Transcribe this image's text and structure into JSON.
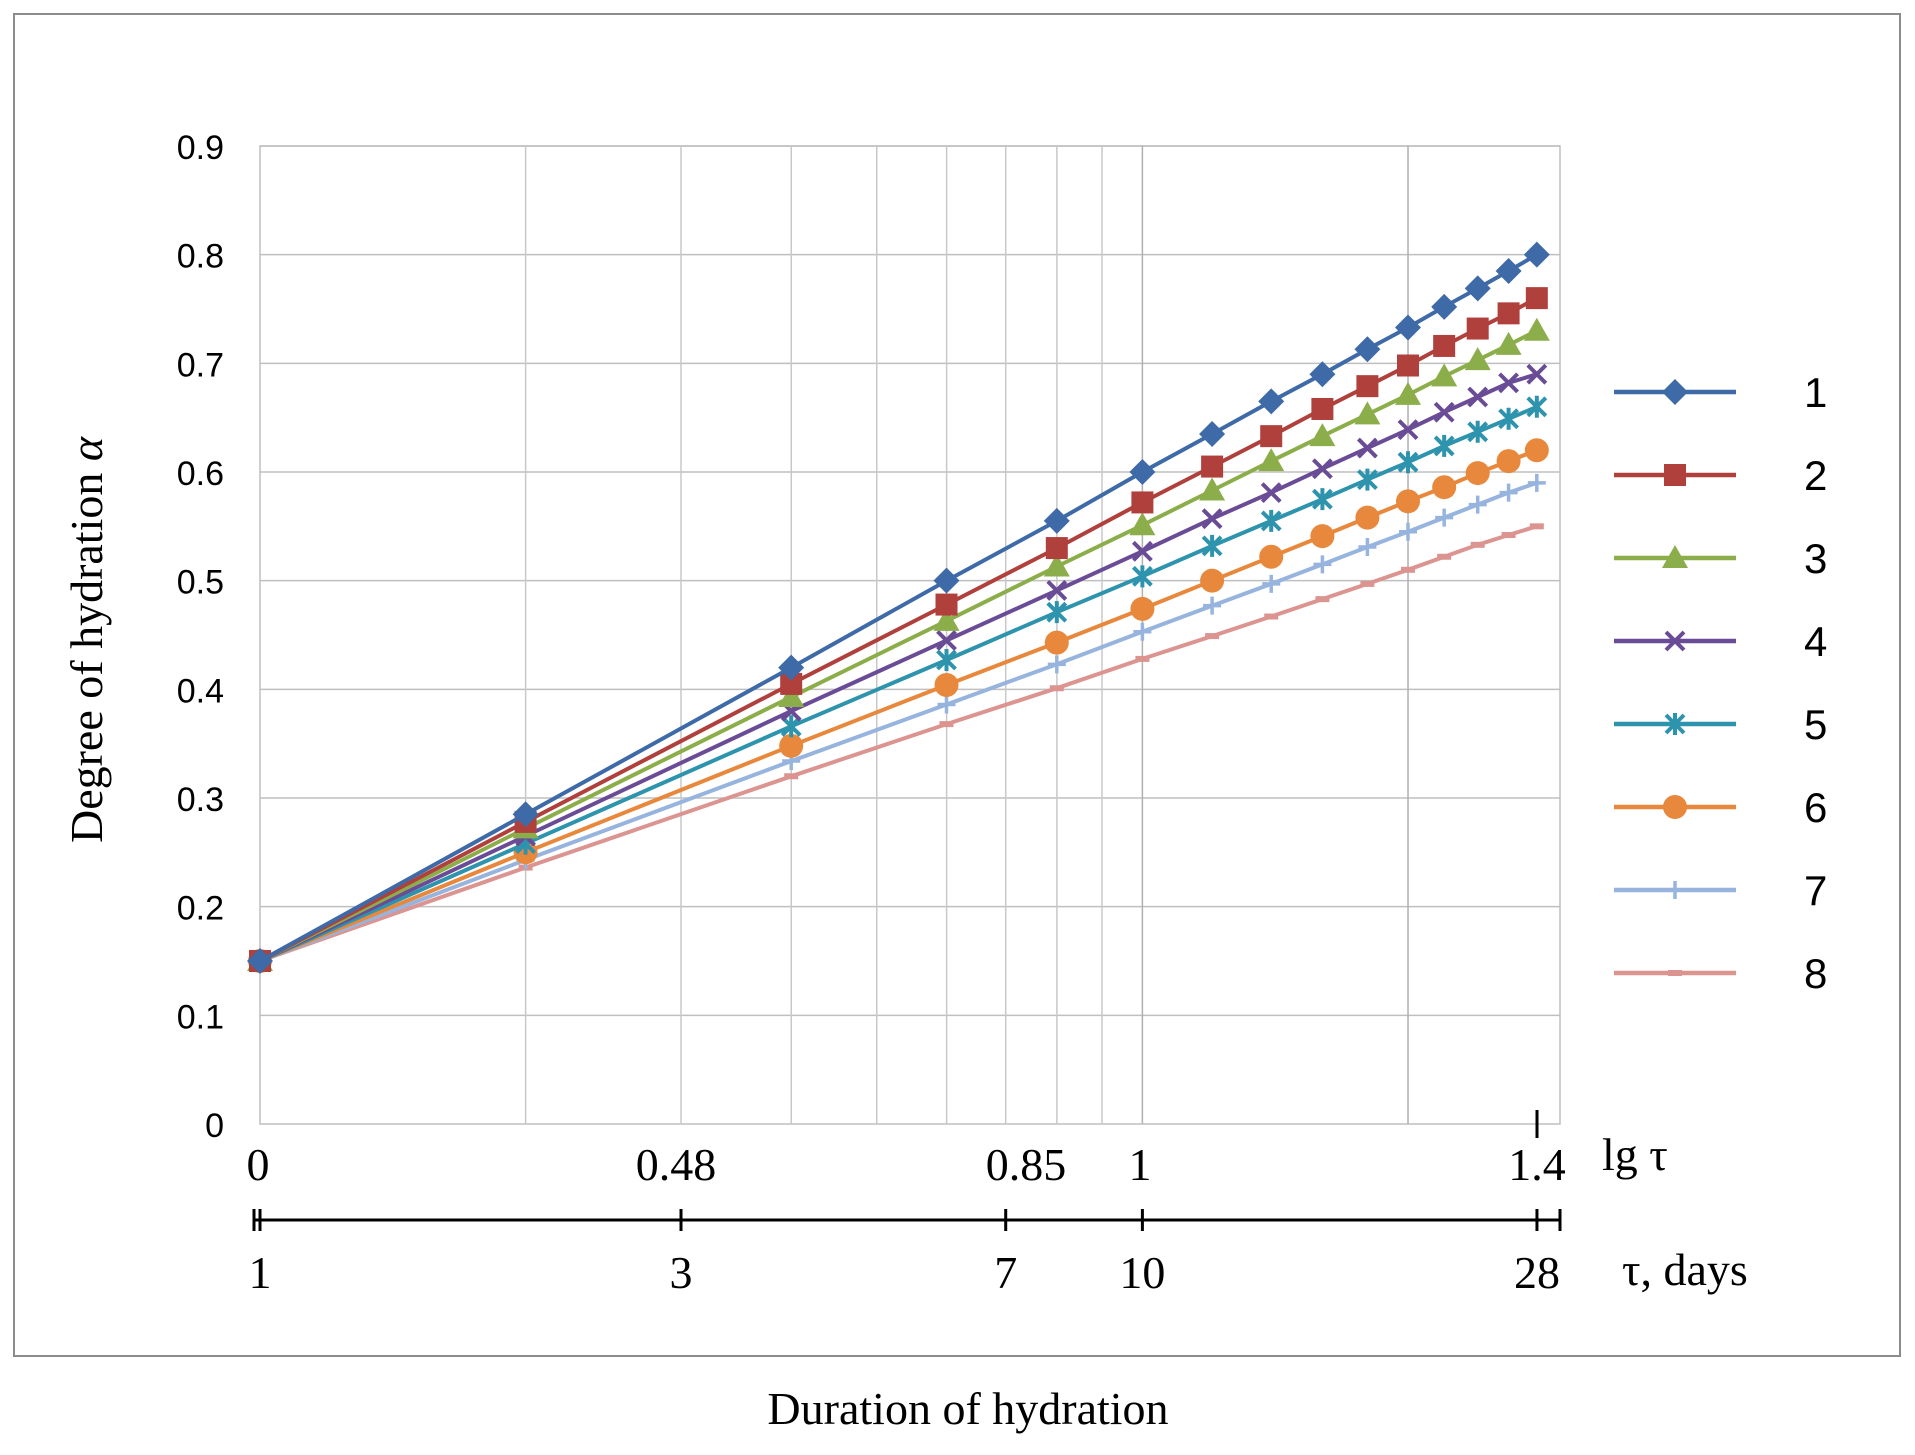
{
  "chart_data": {
    "type": "line",
    "xlabel": "Duration of hydration",
    "ylabel": "Degree of hydration",
    "ylabel_symbol": "α",
    "ylim": [
      0,
      0.9
    ],
    "yticks": [
      "0",
      "0.1",
      "0.2",
      "0.3",
      "0.4",
      "0.5",
      "0.6",
      "0.7",
      "0.8",
      "0.9"
    ],
    "xlim": [
      0,
      1.4472
    ],
    "lg_axis_label": "lg τ",
    "days_axis_label": "τ, days",
    "lg_ticks": [
      {
        "label": "0",
        "value": 0
      },
      {
        "label": "0.48",
        "value": 0.4771
      },
      {
        "label": "0.85",
        "value": 0.8451
      },
      {
        "label": "1",
        "value": 1
      },
      {
        "label": "1.4",
        "value": 1.4472
      }
    ],
    "day_ticks": [
      {
        "label": "1",
        "value": 1
      },
      {
        "label": "3",
        "value": 3
      },
      {
        "label": "7",
        "value": 7
      },
      {
        "label": "10",
        "value": 10
      },
      {
        "label": "28",
        "value": 28
      }
    ],
    "x": [
      0,
      0.301,
      0.602,
      0.778,
      0.903,
      1.0,
      1.079,
      1.146,
      1.204,
      1.255,
      1.301,
      1.342,
      1.38,
      1.415,
      1.447
    ],
    "series": [
      {
        "name": "1",
        "color": "#3e6aa8",
        "marker": "diamond",
        "values": [
          0.15,
          0.285,
          0.42,
          0.5,
          0.555,
          0.6,
          0.635,
          0.665,
          0.69,
          0.713,
          0.733,
          0.752,
          0.769,
          0.785,
          0.8
        ]
      },
      {
        "name": "2",
        "color": "#b0403c",
        "marker": "square",
        "values": [
          0.15,
          0.278,
          0.405,
          0.478,
          0.53,
          0.572,
          0.605,
          0.633,
          0.658,
          0.679,
          0.698,
          0.716,
          0.732,
          0.746,
          0.76
        ]
      },
      {
        "name": "3",
        "color": "#8cae4a",
        "marker": "triangle",
        "values": [
          0.15,
          0.272,
          0.393,
          0.463,
          0.513,
          0.551,
          0.583,
          0.61,
          0.633,
          0.653,
          0.671,
          0.688,
          0.703,
          0.717,
          0.73
        ]
      },
      {
        "name": "4",
        "color": "#6a4c96",
        "marker": "x",
        "values": [
          0.15,
          0.265,
          0.38,
          0.445,
          0.491,
          0.527,
          0.557,
          0.581,
          0.603,
          0.622,
          0.639,
          0.655,
          0.669,
          0.682,
          0.69
        ]
      },
      {
        "name": "5",
        "color": "#2e93ad",
        "marker": "star",
        "values": [
          0.15,
          0.258,
          0.366,
          0.427,
          0.471,
          0.504,
          0.532,
          0.555,
          0.575,
          0.593,
          0.609,
          0.624,
          0.637,
          0.649,
          0.66
        ]
      },
      {
        "name": "6",
        "color": "#e8883c",
        "marker": "circle",
        "values": [
          0.15,
          0.25,
          0.348,
          0.404,
          0.443,
          0.474,
          0.5,
          0.522,
          0.541,
          0.558,
          0.573,
          0.586,
          0.599,
          0.61,
          0.62
        ]
      },
      {
        "name": "7",
        "color": "#97b4de",
        "marker": "plus",
        "values": [
          0.15,
          0.243,
          0.334,
          0.386,
          0.423,
          0.453,
          0.477,
          0.497,
          0.515,
          0.531,
          0.545,
          0.558,
          0.57,
          0.581,
          0.59
        ]
      },
      {
        "name": "8",
        "color": "#dc9490",
        "marker": "dash",
        "values": [
          0.15,
          0.236,
          0.32,
          0.368,
          0.401,
          0.428,
          0.449,
          0.467,
          0.483,
          0.497,
          0.51,
          0.522,
          0.533,
          0.542,
          0.55
        ]
      }
    ],
    "legend_position": "right"
  }
}
